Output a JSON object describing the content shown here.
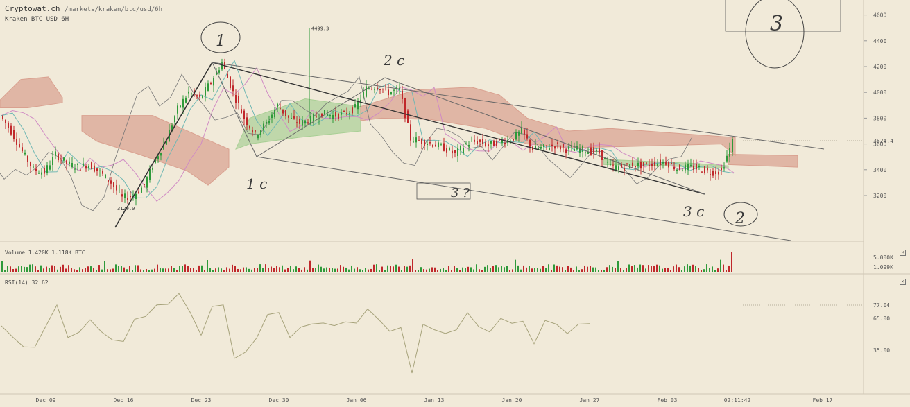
{
  "header": {
    "site": "Cryptowat.ch",
    "path": "/markets/kraken/btc/usd/6h",
    "pair": "Kraken BTC USD 6H"
  },
  "colors": {
    "background": "#f1ead9",
    "up_candle": "#2f9a3a",
    "down_candle": "#c0282b",
    "bear_cloud": "#d9a08f",
    "bull_cloud": "#a9cf95"
  },
  "chart_data": [
    {
      "type": "candlestick",
      "pane": "price",
      "y_ticks": [
        "4600",
        "4400",
        "4200",
        "4000",
        "3800",
        "3600",
        "3400",
        "3200"
      ],
      "x_ticks": [
        "Dec 09",
        "Dec 16",
        "Dec 23",
        "Dec 30",
        "Jan 06",
        "Jan 13",
        "Jan 20",
        "Jan 27",
        "Feb 03",
        "02:11:42",
        "Feb 17"
      ],
      "ylim": [
        3100,
        4700
      ],
      "current_price": "3624.4",
      "annotations": {
        "high": "4499.3",
        "low": "3120.0"
      },
      "drawn_labels": [
        "1",
        "2 c",
        "1 c",
        "3 ?",
        "3 c",
        "2",
        "3"
      ],
      "close_path": [
        [
          "Dec 04",
          3820
        ],
        [
          "Dec 05",
          3700
        ],
        [
          "Dec 06",
          3540
        ],
        [
          "Dec 07",
          3400
        ],
        [
          "Dec 08",
          3380
        ],
        [
          "Dec 09",
          3520
        ],
        [
          "Dec 10",
          3450
        ],
        [
          "Dec 11",
          3420
        ],
        [
          "Dec 12",
          3440
        ],
        [
          "Dec 13",
          3380
        ],
        [
          "Dec 14",
          3300
        ],
        [
          "Dec 15",
          3180
        ],
        [
          "Dec 16",
          3200
        ],
        [
          "Dec 17",
          3280
        ],
        [
          "Dec 18",
          3480
        ],
        [
          "Dec 19",
          3640
        ],
        [
          "Dec 20",
          3870
        ],
        [
          "Dec 21",
          4000
        ],
        [
          "Dec 22",
          3950
        ],
        [
          "Dec 23",
          4080
        ],
        [
          "Dec 24",
          4230
        ],
        [
          "Dec 25",
          4000
        ],
        [
          "Dec 26",
          3800
        ],
        [
          "Dec 27",
          3670
        ],
        [
          "Dec 28",
          3760
        ],
        [
          "Dec 29",
          3900
        ],
        [
          "Dec 30",
          3800
        ],
        [
          "Dec 31",
          3760
        ],
        [
          "Jan 01",
          3790
        ],
        [
          "Jan 02",
          3840
        ],
        [
          "Jan 03",
          3820
        ],
        [
          "Jan 04",
          3830
        ],
        [
          "Jan 05",
          3880
        ],
        [
          "Jan 06",
          4030
        ],
        [
          "Jan 07",
          4050
        ],
        [
          "Jan 08",
          4000
        ],
        [
          "Jan 09",
          4020
        ],
        [
          "Jan 10",
          3640
        ],
        [
          "Jan 11",
          3620
        ],
        [
          "Jan 12",
          3600
        ],
        [
          "Jan 13",
          3570
        ],
        [
          "Jan 14",
          3520
        ],
        [
          "Jan 15",
          3600
        ],
        [
          "Jan 16",
          3620
        ],
        [
          "Jan 17",
          3590
        ],
        [
          "Jan 18",
          3620
        ],
        [
          "Jan 19",
          3630
        ],
        [
          "Jan 20",
          3700
        ],
        [
          "Jan 21",
          3560
        ],
        [
          "Jan 22",
          3570
        ],
        [
          "Jan 23",
          3590
        ],
        [
          "Jan 24",
          3560
        ],
        [
          "Jan 25",
          3560
        ],
        [
          "Jan 26",
          3550
        ],
        [
          "Jan 27",
          3530
        ],
        [
          "Jan 28",
          3420
        ],
        [
          "Jan 29",
          3420
        ],
        [
          "Jan 30",
          3440
        ],
        [
          "Jan 31",
          3430
        ],
        [
          "Feb 01",
          3450
        ],
        [
          "Feb 02",
          3460
        ],
        [
          "Feb 03",
          3410
        ],
        [
          "Feb 04",
          3420
        ],
        [
          "Feb 05",
          3410
        ],
        [
          "Feb 06",
          3380
        ],
        [
          "Feb 07",
          3390
        ],
        [
          "Feb 08",
          3620
        ]
      ]
    },
    {
      "type": "bar",
      "pane": "volume",
      "label": "Volume 1.420K 1.118K BTC",
      "y_ticks": [
        "5.000K",
        "1.099K"
      ]
    },
    {
      "type": "line",
      "pane": "rsi",
      "label": "RSI(14) 32.62",
      "y_ticks": [
        "77.04",
        "65.00",
        "35.00"
      ]
    }
  ]
}
